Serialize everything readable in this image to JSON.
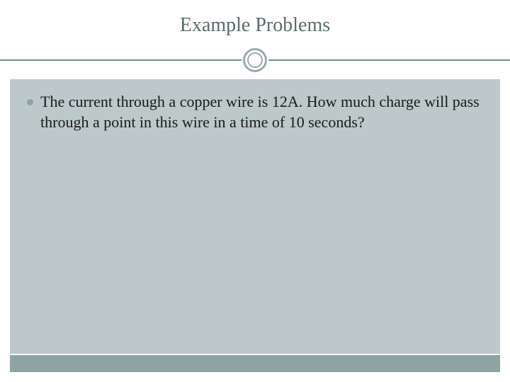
{
  "slide": {
    "title": "Example Problems",
    "title_color": "#5a6b6b",
    "title_fontsize": 28,
    "bullet_text": "The current through a copper wire is 12A.  How much charge will pass through a point in this wire in a time of 10 seconds?",
    "body_fontsize": 22,
    "body_color": "#1a1a1a",
    "content_bg": "#bcc8c9",
    "bottom_bar_color": "#8ea4a3",
    "bullet_color": "#8ea4a3",
    "divider_color": "#7a8a8a",
    "circle_color": "#9aaab0",
    "page_bg": "#ffffff"
  }
}
